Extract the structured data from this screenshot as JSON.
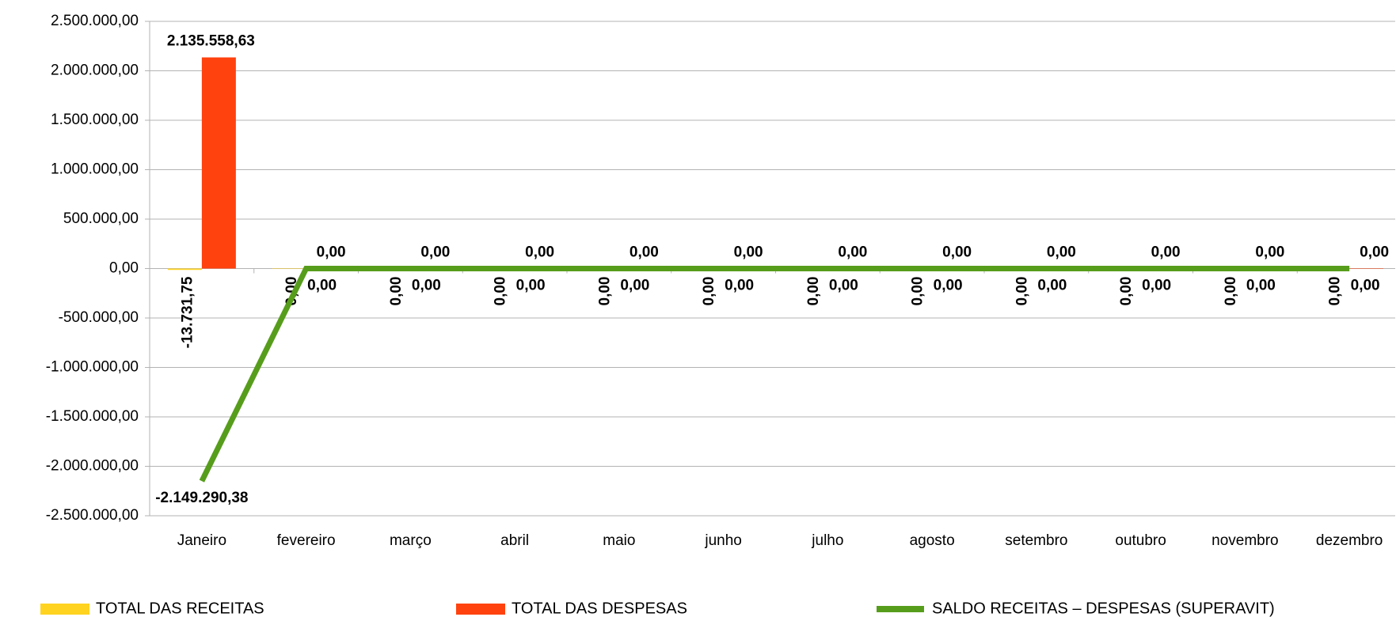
{
  "chart_data": {
    "type": "bar",
    "categories": [
      "Janeiro",
      "fevereiro",
      "março",
      "abril",
      "maio",
      "junho",
      "julho",
      "agosto",
      "setembro",
      "outubro",
      "novembro",
      "dezembro"
    ],
    "series": [
      {
        "name": "TOTAL DAS RECEITAS",
        "color": "#ffd320",
        "values": [
          -13731.75,
          0,
          0,
          0,
          0,
          0,
          0,
          0,
          0,
          0,
          0,
          0
        ],
        "value_labels": [
          "-13.731,75",
          "0,00",
          "0,00",
          "0,00",
          "0,00",
          "0,00",
          "0,00",
          "0,00",
          "0,00",
          "0,00",
          "0,00",
          "0,00"
        ]
      },
      {
        "name": "TOTAL DAS DESPESAS",
        "color": "#ff420e",
        "values": [
          2135558.63,
          0,
          0,
          0,
          0,
          0,
          0,
          0,
          0,
          0,
          0,
          0
        ],
        "value_labels": [
          "2.135.558,63",
          "0,00",
          "0,00",
          "0,00",
          "0,00",
          "0,00",
          "0,00",
          "0,00",
          "0,00",
          "0,00",
          "0,00",
          "0,00"
        ]
      },
      {
        "name": "SALDO RECEITAS – DESPESAS (SUPERAVIT)",
        "color": "#579d1c",
        "type": "line",
        "values": [
          -2149290.38,
          0,
          0,
          0,
          0,
          0,
          0,
          0,
          0,
          0,
          0,
          0
        ],
        "value_labels": [
          "-2.149.290,38",
          "0,00",
          "0,00",
          "0,00",
          "0,00",
          "0,00",
          "0,00",
          "0,00",
          "0,00",
          "0,00",
          "0,00",
          "0,00"
        ]
      }
    ],
    "ylim": [
      -2500000,
      2500000
    ],
    "yticks": [
      {
        "value": 2500000,
        "label": "2.500.000,00"
      },
      {
        "value": 2000000,
        "label": "2.000.000,00"
      },
      {
        "value": 1500000,
        "label": "1.500.000,00"
      },
      {
        "value": 1000000,
        "label": "1.000.000,00"
      },
      {
        "value": 500000,
        "label": "500.000,00"
      },
      {
        "value": 0,
        "label": "0,00"
      },
      {
        "value": -500000,
        "label": "-500.000,00"
      },
      {
        "value": -1000000,
        "label": "-1.000.000,00"
      },
      {
        "value": -1500000,
        "label": "-1.500.000,00"
      },
      {
        "value": -2000000,
        "label": "-2.000.000,00"
      },
      {
        "value": -2500000,
        "label": "-2.500.000,00"
      }
    ],
    "grid": true,
    "legend": "bottom"
  }
}
